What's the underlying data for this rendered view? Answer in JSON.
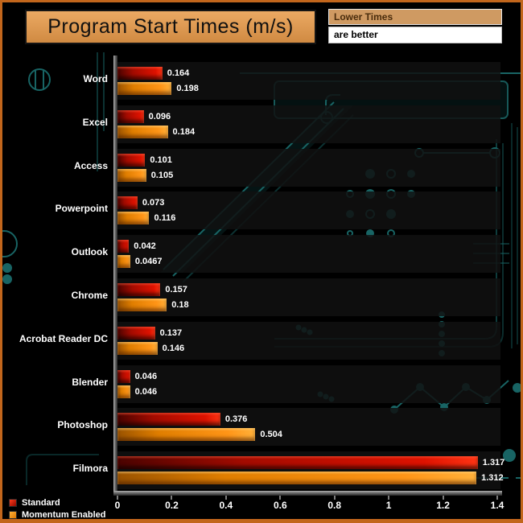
{
  "title": "Program Start Times (m/s)",
  "note": {
    "line1": "Lower Times",
    "line2": "are better"
  },
  "legend": [
    {
      "label": "Standard",
      "color": "#d91000"
    },
    {
      "label": "Momentum Enabled",
      "color": "#ff8c00"
    }
  ],
  "chart_data": {
    "type": "bar",
    "orientation": "horizontal",
    "title": "Program Start Times (m/s)",
    "categories": [
      "Word",
      "Excel",
      "Access",
      "Powerpoint",
      "Outlook",
      "Chrome",
      "Acrobat Reader DC",
      "Blender",
      "Photoshop",
      "Filmora"
    ],
    "series": [
      {
        "name": "Standard",
        "color": "#d91000",
        "values": [
          0.164,
          0.096,
          0.101,
          0.073,
          0.042,
          0.157,
          0.137,
          0.046,
          0.376,
          1.317
        ],
        "labels": [
          "0.164",
          "0.096",
          "0.101",
          "0.073",
          "0.042",
          "0.157",
          "0.137",
          "0.046",
          "0.376",
          "1.317"
        ]
      },
      {
        "name": "Momentum Enabled",
        "color": "#ff8c00",
        "values": [
          0.198,
          0.184,
          0.105,
          0.116,
          0.0467,
          0.18,
          0.146,
          0.046,
          0.504,
          1.312
        ],
        "labels": [
          "0.198",
          "0.184",
          "0.105",
          "0.116",
          "0.0467",
          "0.18",
          "0.146",
          "0.046",
          "0.504",
          "1.312"
        ]
      }
    ],
    "xlim": [
      0,
      1.4
    ],
    "xticks": [
      0,
      0.2,
      0.4,
      0.6,
      0.8,
      1,
      1.2,
      1.4
    ],
    "xtick_labels": [
      "0",
      "0.2",
      "0.4",
      "0.6",
      "0.8",
      "1",
      "1.2",
      "1.4"
    ],
    "grid": false,
    "legend_position": "bottom-left",
    "colors": {
      "background": "#000000",
      "frame_border": "#c2661c",
      "title_bg": "#dd9a55",
      "circuit_teal": "#1e7d7d",
      "row_band": "#111111",
      "axis_gray": "#6a6a6a",
      "text_white": "#ffffff"
    }
  }
}
